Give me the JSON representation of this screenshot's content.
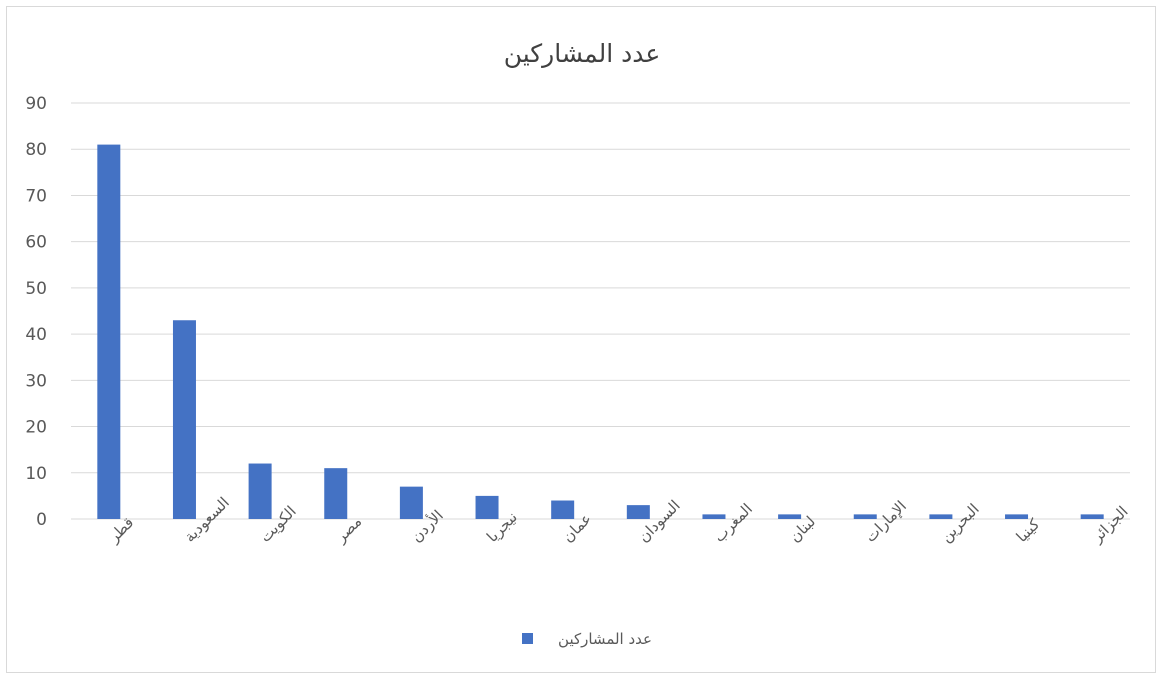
{
  "chart_data": {
    "type": "bar",
    "title": "عدد المشاركين",
    "xlabel": "",
    "ylabel": "",
    "categories": [
      "قطر",
      "السعودية",
      "الكويت",
      "مصر",
      "الأردن",
      "نيجريا",
      "عمان",
      "السودان",
      "المغرب",
      "لبنان",
      "الإمارات",
      "البحرين",
      "كينيا",
      "الجزائر"
    ],
    "series": [
      {
        "name": "عدد المشاركين",
        "values": [
          81,
          43,
          12,
          11,
          7,
          5,
          4,
          3,
          1,
          1,
          1,
          1,
          1,
          1
        ]
      }
    ],
    "ylim": [
      0,
      90
    ],
    "yticks": [
      0,
      10,
      20,
      30,
      40,
      50,
      60,
      70,
      80,
      90
    ],
    "grid": true,
    "legend_position": "bottom",
    "colors": {
      "bar": "#4472c4",
      "grid": "#d9d9d9",
      "text": "#595959"
    }
  }
}
